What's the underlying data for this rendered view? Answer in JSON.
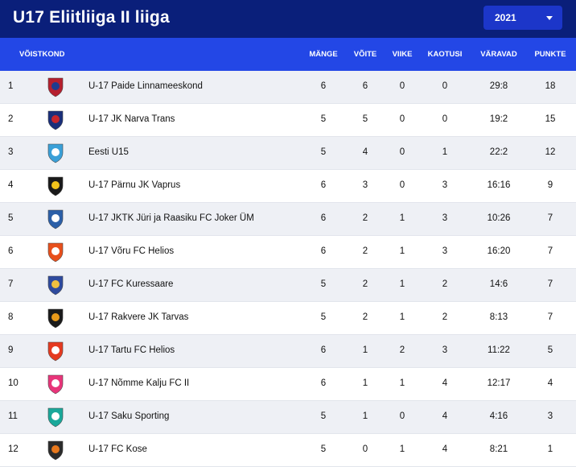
{
  "header": {
    "title": "U17 Eliitliiga II liiga",
    "season": "2021"
  },
  "columns": {
    "team": "VÕISTKOND",
    "played": "MÄNGE",
    "wins": "VÕITE",
    "draws": "VIIKE",
    "losses": "KAOTUSI",
    "goals": "VÄRAVAD",
    "points": "PUNKTE"
  },
  "rows": [
    {
      "pos": "1",
      "team": "U-17 Paide Linnameeskond",
      "played": "6",
      "wins": "6",
      "draws": "0",
      "losses": "0",
      "goals": "29:8",
      "points": "18",
      "logo": "paide-logo",
      "c1": "#b51f2e",
      "c2": "#1f3c8f"
    },
    {
      "pos": "2",
      "team": "U-17 JK Narva Trans",
      "played": "5",
      "wins": "5",
      "draws": "0",
      "losses": "0",
      "goals": "19:2",
      "points": "15",
      "logo": "narva-trans-logo",
      "c1": "#1a2f7a",
      "c2": "#c8262c"
    },
    {
      "pos": "3",
      "team": "Eesti U15",
      "played": "5",
      "wins": "4",
      "draws": "0",
      "losses": "1",
      "goals": "22:2",
      "points": "12",
      "logo": "eesti-logo",
      "c1": "#3aa0d8",
      "c2": "#ffffff"
    },
    {
      "pos": "4",
      "team": "U-17 Pärnu JK Vaprus",
      "played": "6",
      "wins": "3",
      "draws": "0",
      "losses": "3",
      "goals": "16:16",
      "points": "9",
      "logo": "vaprus-logo",
      "c1": "#1a1a1a",
      "c2": "#f2c31b"
    },
    {
      "pos": "5",
      "team": "U-17 JKTK Jüri ja Raasiku FC Joker ÜM",
      "played": "6",
      "wins": "2",
      "draws": "1",
      "losses": "3",
      "goals": "10:26",
      "points": "7",
      "logo": "joker-logo",
      "c1": "#2b5fa8",
      "c2": "#ffffff"
    },
    {
      "pos": "6",
      "team": "U-17 Võru FC Helios",
      "played": "6",
      "wins": "2",
      "draws": "1",
      "losses": "3",
      "goals": "16:20",
      "points": "7",
      "logo": "voru-helios-logo",
      "c1": "#e8501c",
      "c2": "#ffffff"
    },
    {
      "pos": "7",
      "team": "U-17 FC Kuressaare",
      "played": "5",
      "wins": "2",
      "draws": "1",
      "losses": "2",
      "goals": "14:6",
      "points": "7",
      "logo": "kuressaare-logo",
      "c1": "#2e4a9e",
      "c2": "#f0c040"
    },
    {
      "pos": "8",
      "team": "U-17 Rakvere JK Tarvas",
      "played": "5",
      "wins": "2",
      "draws": "1",
      "losses": "2",
      "goals": "8:13",
      "points": "7",
      "logo": "tarvas-logo",
      "c1": "#1a1a1a",
      "c2": "#e89a1a"
    },
    {
      "pos": "9",
      "team": "U-17 Tartu FC Helios",
      "played": "6",
      "wins": "1",
      "draws": "2",
      "losses": "3",
      "goals": "11:22",
      "points": "5",
      "logo": "tartu-helios-logo",
      "c1": "#e53a20",
      "c2": "#ffffff"
    },
    {
      "pos": "10",
      "team": "U-17 Nõmme Kalju FC II",
      "played": "6",
      "wins": "1",
      "draws": "1",
      "losses": "4",
      "goals": "12:17",
      "points": "4",
      "logo": "kalju-logo",
      "c1": "#e8357a",
      "c2": "#ffffff"
    },
    {
      "pos": "11",
      "team": "U-17 Saku Sporting",
      "played": "5",
      "wins": "1",
      "draws": "0",
      "losses": "4",
      "goals": "4:16",
      "points": "3",
      "logo": "saku-logo",
      "c1": "#1aa89a",
      "c2": "#ffffff"
    },
    {
      "pos": "12",
      "team": "U-17 FC Kose",
      "played": "5",
      "wins": "0",
      "draws": "1",
      "losses": "4",
      "goals": "8:21",
      "points": "1",
      "logo": "kose-logo",
      "c1": "#2b2b2b",
      "c2": "#e8781c"
    }
  ]
}
